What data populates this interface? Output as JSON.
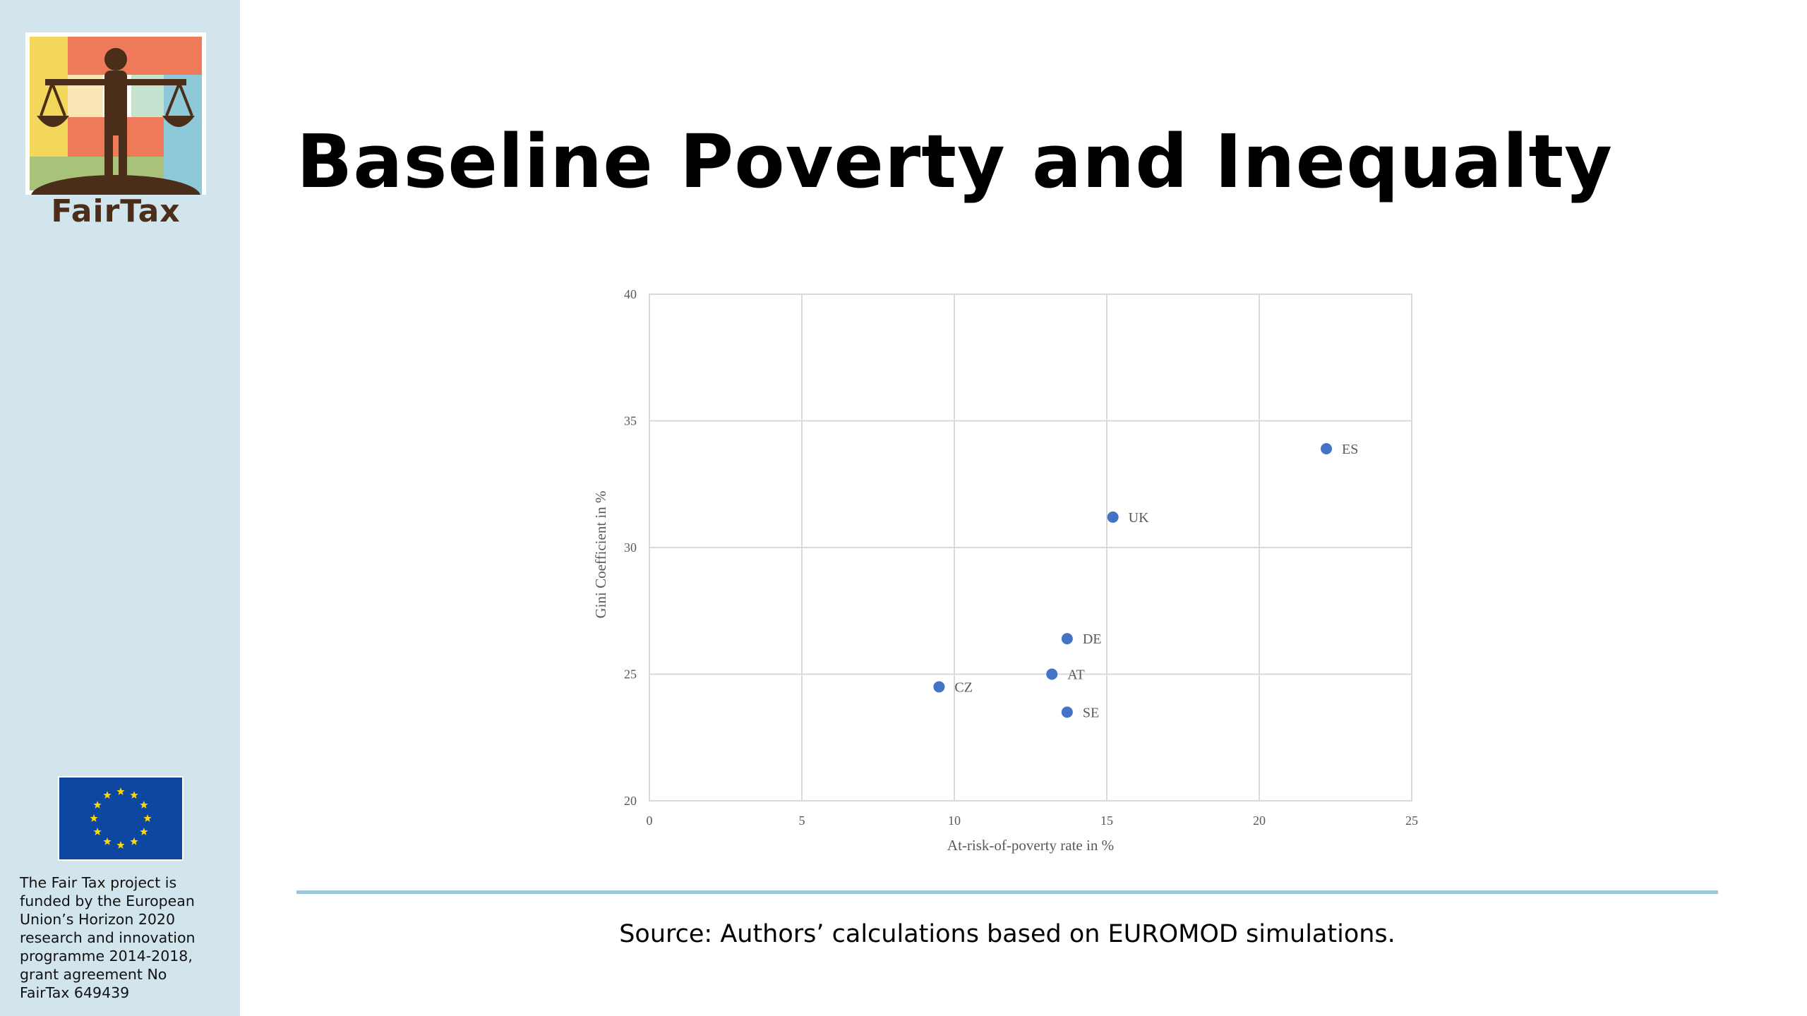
{
  "slide": {
    "title": "Baseline Poverty and Inequalty",
    "source": "Source: Authors’ calculations based on EUROMOD simulations."
  },
  "sidebar": {
    "logo_text": "FairTax",
    "funding_text": "The Fair Tax project is\nfunded by the European\nUnion’s Horizon 2020\nresearch and innovation\nprogramme 2014-2018,\ngrant agreement No\nFairTax 649439"
  },
  "colors": {
    "sidebar_bg": "#d2e4ec",
    "divider": "#9cc7d6",
    "point": "#4472c4",
    "eu_blue": "#0d47a1",
    "eu_star": "#ffd700"
  },
  "chart_data": {
    "type": "scatter",
    "xlabel": "At-risk-of-poverty rate in %",
    "ylabel": "Gini Coefficient in %",
    "xlim": [
      0,
      25
    ],
    "ylim": [
      20,
      40
    ],
    "xticks": [
      0,
      5,
      10,
      15,
      20,
      25
    ],
    "yticks": [
      20,
      25,
      30,
      35,
      40
    ],
    "grid": true,
    "points": [
      {
        "label": "ES",
        "x": 22.2,
        "y": 33.9
      },
      {
        "label": "UK",
        "x": 15.2,
        "y": 31.2
      },
      {
        "label": "DE",
        "x": 13.7,
        "y": 26.4
      },
      {
        "label": "AT",
        "x": 13.2,
        "y": 25.0
      },
      {
        "label": "CZ",
        "x": 9.5,
        "y": 24.5
      },
      {
        "label": "SE",
        "x": 13.7,
        "y": 23.5
      }
    ]
  }
}
